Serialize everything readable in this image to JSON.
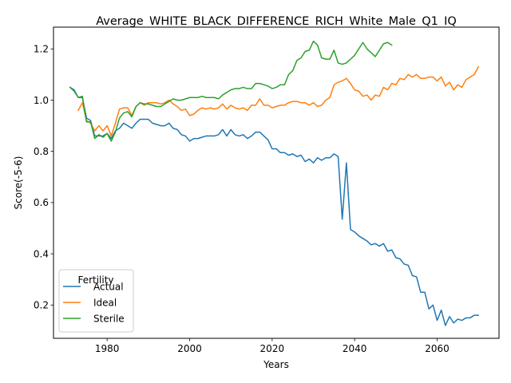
{
  "chart_data": {
    "type": "line",
    "title": "Average_WHITE_BLACK_DIFFERENCE_RICH_White_Male_Q1_IQ",
    "xlabel": "Years",
    "ylabel": "Score(-5-6)",
    "xlim": [
      1967,
      2075
    ],
    "ylim": [
      0.07,
      1.285
    ],
    "xticks": [
      1980,
      2000,
      2020,
      2040,
      2060
    ],
    "yticks": [
      0.2,
      0.4,
      0.6,
      0.8,
      1.0,
      1.2
    ],
    "xtick_labels": [
      "1980",
      "2000",
      "2020",
      "2040",
      "2060"
    ],
    "ytick_labels": [
      "0.2",
      "0.4",
      "0.6",
      "0.8",
      "1.0",
      "1.2"
    ],
    "grid": false,
    "legend": {
      "title": "Fertility",
      "placement": "lower-left"
    },
    "series": [
      {
        "name": "Actual",
        "color": "#1f77b4",
        "x": [
          1971,
          1972,
          1973,
          1974,
          1975,
          1976,
          1977,
          1978,
          1979,
          1980,
          1981,
          1982,
          1983,
          1984,
          1985,
          1986,
          1987,
          1988,
          1989,
          1990,
          1991,
          1992,
          1993,
          1994,
          1995,
          1996,
          1997,
          1998,
          1999,
          2000,
          2001,
          2002,
          2003,
          2004,
          2005,
          2006,
          2007,
          2008,
          2009,
          2010,
          2011,
          2012,
          2013,
          2014,
          2015,
          2016,
          2017,
          2018,
          2019,
          2020,
          2021,
          2022,
          2023,
          2024,
          2025,
          2026,
          2027,
          2028,
          2029,
          2030,
          2031,
          2032,
          2033,
          2034,
          2035,
          2036,
          2037,
          2038,
          2039,
          2040,
          2041,
          2042,
          2043,
          2044,
          2045,
          2046,
          2047,
          2048,
          2049,
          2050,
          2051,
          2052,
          2053,
          2054,
          2055,
          2056,
          2057,
          2058,
          2059,
          2060,
          2061,
          2062,
          2063,
          2064,
          2065,
          2066,
          2067,
          2068,
          2069,
          2070
        ],
        "y": [
          1.05,
          1.04,
          1.01,
          1.01,
          0.93,
          0.92,
          0.86,
          0.86,
          0.86,
          0.87,
          0.85,
          0.88,
          0.89,
          0.91,
          0.9,
          0.89,
          0.91,
          0.925,
          0.925,
          0.925,
          0.91,
          0.905,
          0.9,
          0.9,
          0.91,
          0.89,
          0.885,
          0.865,
          0.86,
          0.84,
          0.85,
          0.85,
          0.855,
          0.86,
          0.86,
          0.86,
          0.865,
          0.885,
          0.86,
          0.885,
          0.865,
          0.86,
          0.865,
          0.85,
          0.86,
          0.875,
          0.875,
          0.86,
          0.845,
          0.81,
          0.81,
          0.795,
          0.795,
          0.785,
          0.79,
          0.78,
          0.785,
          0.76,
          0.77,
          0.755,
          0.775,
          0.765,
          0.775,
          0.775,
          0.79,
          0.78,
          0.535,
          0.755,
          0.495,
          0.485,
          0.47,
          0.46,
          0.45,
          0.435,
          0.44,
          0.43,
          0.44,
          0.41,
          0.415,
          0.385,
          0.38,
          0.36,
          0.355,
          0.315,
          0.31,
          0.25,
          0.25,
          0.185,
          0.2,
          0.14,
          0.18,
          0.12,
          0.155,
          0.13,
          0.145,
          0.14,
          0.15,
          0.15,
          0.16,
          0.16
        ]
      },
      {
        "name": "Ideal",
        "color": "#ff7f0e",
        "x": [
          1973,
          1974,
          1975,
          1976,
          1977,
          1978,
          1979,
          1980,
          1981,
          1982,
          1983,
          1984,
          1985,
          1986,
          1987,
          1988,
          1989,
          1990,
          1991,
          1992,
          1993,
          1994,
          1995,
          1996,
          1997,
          1998,
          1999,
          2000,
          2001,
          2002,
          2003,
          2004,
          2005,
          2006,
          2007,
          2008,
          2009,
          2010,
          2011,
          2012,
          2013,
          2014,
          2015,
          2016,
          2017,
          2018,
          2019,
          2020,
          2021,
          2022,
          2023,
          2024,
          2025,
          2026,
          2027,
          2028,
          2029,
          2030,
          2031,
          2032,
          2033,
          2034,
          2035,
          2036,
          2037,
          2038,
          2039,
          2040,
          2041,
          2042,
          2043,
          2044,
          2045,
          2046,
          2047,
          2048,
          2049,
          2050,
          2051,
          2052,
          2053,
          2054,
          2055,
          2056,
          2057,
          2058,
          2059,
          2060,
          2061,
          2062,
          2063,
          2064,
          2065,
          2066,
          2067,
          2068,
          2069,
          2070
        ],
        "y": [
          0.96,
          0.99,
          0.92,
          0.91,
          0.88,
          0.9,
          0.88,
          0.9,
          0.86,
          0.91,
          0.965,
          0.97,
          0.97,
          0.94,
          0.975,
          0.99,
          0.98,
          0.99,
          0.99,
          0.99,
          0.985,
          0.99,
          1.0,
          0.985,
          0.975,
          0.96,
          0.965,
          0.94,
          0.945,
          0.96,
          0.97,
          0.965,
          0.97,
          0.965,
          0.97,
          0.985,
          0.965,
          0.98,
          0.97,
          0.965,
          0.97,
          0.96,
          0.98,
          0.98,
          1.005,
          0.98,
          0.98,
          0.97,
          0.975,
          0.98,
          0.98,
          0.99,
          0.995,
          0.995,
          0.99,
          0.99,
          0.98,
          0.99,
          0.975,
          0.98,
          1.0,
          1.01,
          1.06,
          1.07,
          1.075,
          1.085,
          1.065,
          1.04,
          1.035,
          1.015,
          1.02,
          1.0,
          1.02,
          1.015,
          1.05,
          1.04,
          1.065,
          1.06,
          1.085,
          1.08,
          1.1,
          1.09,
          1.1,
          1.085,
          1.085,
          1.09,
          1.09,
          1.075,
          1.09,
          1.055,
          1.07,
          1.04,
          1.06,
          1.05,
          1.08,
          1.09,
          1.1,
          1.13
        ]
      },
      {
        "name": "Sterile",
        "color": "#2ca02c",
        "x": [
          1971,
          1972,
          1973,
          1974,
          1975,
          1976,
          1977,
          1978,
          1979,
          1980,
          1981,
          1982,
          1983,
          1984,
          1985,
          1986,
          1987,
          1988,
          1989,
          1990,
          1991,
          1992,
          1993,
          1994,
          1995,
          1996,
          1997,
          1998,
          1999,
          2000,
          2001,
          2002,
          2003,
          2004,
          2005,
          2006,
          2007,
          2008,
          2009,
          2010,
          2011,
          2012,
          2013,
          2014,
          2015,
          2016,
          2017,
          2018,
          2019,
          2020,
          2021,
          2022,
          2023,
          2024,
          2025,
          2026,
          2027,
          2028,
          2029,
          2030,
          2031,
          2032,
          2033,
          2034,
          2035,
          2036,
          2037,
          2038,
          2039,
          2040,
          2041,
          2042,
          2043,
          2044,
          2045,
          2046,
          2047,
          2048,
          2049
        ],
        "y": [
          1.05,
          1.035,
          1.01,
          1.015,
          0.915,
          0.915,
          0.85,
          0.865,
          0.855,
          0.87,
          0.84,
          0.875,
          0.93,
          0.95,
          0.955,
          0.935,
          0.975,
          0.99,
          0.985,
          0.985,
          0.98,
          0.975,
          0.975,
          0.985,
          0.995,
          1.005,
          1.0,
          1.0,
          1.005,
          1.01,
          1.01,
          1.01,
          1.015,
          1.01,
          1.01,
          1.01,
          1.005,
          1.02,
          1.03,
          1.04,
          1.045,
          1.045,
          1.05,
          1.045,
          1.045,
          1.065,
          1.065,
          1.06,
          1.055,
          1.045,
          1.05,
          1.06,
          1.06,
          1.1,
          1.115,
          1.155,
          1.165,
          1.19,
          1.195,
          1.23,
          1.215,
          1.165,
          1.16,
          1.16,
          1.195,
          1.145,
          1.14,
          1.145,
          1.16,
          1.175,
          1.2,
          1.225,
          1.2,
          1.185,
          1.17,
          1.195,
          1.22,
          1.225,
          1.215
        ]
      }
    ]
  }
}
